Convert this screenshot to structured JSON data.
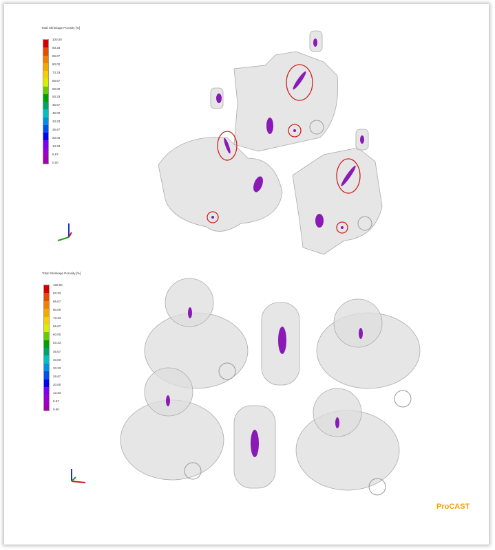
{
  "panels": [
    {
      "legend": {
        "title": "Total Shrinkage Porosity [%]",
        "labels": [
          "100.00",
          "93.33",
          "86.67",
          "80.00",
          "73.33",
          "66.67",
          "60.00",
          "53.33",
          "46.67",
          "40.00",
          "33.33",
          "26.67",
          "20.00",
          "13.33",
          "6.67",
          "0.00"
        ]
      }
    },
    {
      "legend": {
        "title": "Total Shrinkage Porosity [%]",
        "labels": [
          "100.00",
          "93.33",
          "86.67",
          "80.00",
          "73.33",
          "66.67",
          "60.00",
          "53.33",
          "46.67",
          "40.00",
          "33.33",
          "26.67",
          "20.00",
          "13.33",
          "6.67",
          "0.00"
        ]
      }
    }
  ],
  "colors": {
    "scale": [
      "#d40000",
      "#e84a00",
      "#f08000",
      "#f5a800",
      "#f5d000",
      "#d8f000",
      "#66cc00",
      "#00a000",
      "#00a070",
      "#00c0c0",
      "#0090e0",
      "#0050f0",
      "#0000f0",
      "#8000f0",
      "#9a00d0",
      "#a000b0"
    ],
    "porosity": "#8a1ab5",
    "highlight": "#d02020",
    "part": "#d8d8d8"
  },
  "brand": "ProCAST"
}
